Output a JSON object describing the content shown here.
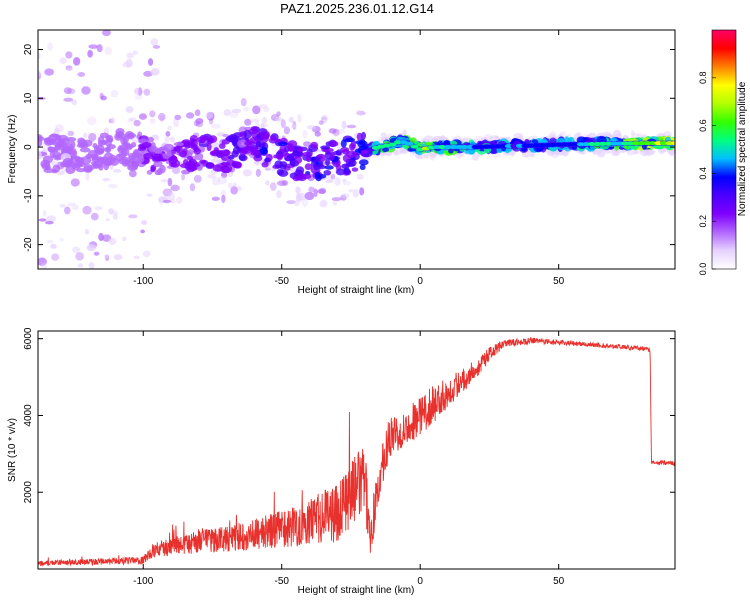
{
  "figure": {
    "title": "PAZ1.2025.236.01.12.G14"
  },
  "chart_data": [
    {
      "type": "heatmap",
      "xlabel": "Height of straight line (km)",
      "ylabel": "Frequency (Hz)",
      "xlim": [
        -138,
        92
      ],
      "ylim": [
        -25,
        24
      ],
      "xticks": [
        -100,
        -50,
        0,
        50
      ],
      "yticks": [
        -20,
        -10,
        0,
        10,
        20
      ],
      "colorbar": {
        "label": "Normalized spectral amplitude",
        "range": [
          0,
          1
        ],
        "ticks": [
          0.0,
          0.2,
          0.4,
          0.6,
          0.8
        ],
        "tick_labels": [
          "0.0",
          "0.2",
          "0.4",
          "0.6",
          "0.8"
        ],
        "colormap": [
          "#ffffff",
          "#e6d2ff",
          "#b266ff",
          "#7f00ff",
          "#4b00ff",
          "#0000ff",
          "#00bfff",
          "#00ff80",
          "#33ff00",
          "#b3ff00",
          "#ffff00",
          "#ff8000",
          "#ff0000",
          "#ff0066"
        ]
      },
      "ridge": {
        "x": [
          -138,
          -120,
          -110,
          -100,
          -90,
          -80,
          -70,
          -65,
          -60,
          -55,
          -50,
          -45,
          -40,
          -35,
          -30,
          -25,
          -20,
          -18,
          -15,
          -10,
          -8,
          -5,
          0,
          5,
          10,
          20,
          30,
          40,
          50,
          60,
          70,
          80,
          92
        ],
        "y": [
          -1.5,
          -1.5,
          0,
          -1.5,
          -2.5,
          -1.5,
          -2,
          0,
          1,
          -0.5,
          -2,
          -3,
          -2.5,
          -3,
          -2.5,
          -1.5,
          -1,
          -0.5,
          0,
          0.5,
          1,
          1,
          -0.5,
          0,
          0,
          0,
          0.2,
          0.3,
          0.5,
          0.6,
          0.7,
          0.8,
          0.8
        ]
      },
      "peak_amplitude": {
        "x": [
          -138,
          -100,
          -60,
          -30,
          -20,
          -15,
          -5,
          0,
          10,
          30,
          50,
          70,
          92
        ],
        "value": [
          0.05,
          0.12,
          0.25,
          0.28,
          0.3,
          0.6,
          0.5,
          0.7,
          0.5,
          0.42,
          0.4,
          0.55,
          0.75
        ]
      }
    },
    {
      "type": "line",
      "xlabel": "Height of straight line (km)",
      "ylabel": "SNR (10 * v/v)",
      "xlim": [
        -138,
        92
      ],
      "ylim": [
        0,
        6200
      ],
      "xticks": [
        -100,
        -50,
        0,
        50
      ],
      "yticks": [
        2000,
        4000,
        6000
      ],
      "series": [
        {
          "color": "#e8302c",
          "x": [
            -138,
            -120,
            -100,
            -96,
            -80,
            -60,
            -40,
            -30,
            -25,
            -20,
            -18,
            -15,
            -12,
            -10,
            -5,
            0,
            5,
            10,
            20,
            25,
            30,
            35,
            40,
            50,
            60,
            70,
            80,
            83,
            83.5,
            92
          ],
          "y": [
            150,
            180,
            230,
            500,
            700,
            900,
            1200,
            1500,
            2000,
            2300,
            800,
            2200,
            3200,
            3500,
            3700,
            4000,
            4300,
            4600,
            5200,
            5600,
            5850,
            5900,
            5950,
            5900,
            5850,
            5800,
            5750,
            5700,
            2800,
            2750
          ],
          "noise": [
            60,
            80,
            100,
            200,
            300,
            400,
            600,
            800,
            900,
            900,
            500,
            600,
            600,
            500,
            500,
            500,
            500,
            400,
            250,
            180,
            120,
            100,
            80,
            70,
            60,
            60,
            60,
            60,
            60,
            60
          ]
        }
      ]
    }
  ]
}
